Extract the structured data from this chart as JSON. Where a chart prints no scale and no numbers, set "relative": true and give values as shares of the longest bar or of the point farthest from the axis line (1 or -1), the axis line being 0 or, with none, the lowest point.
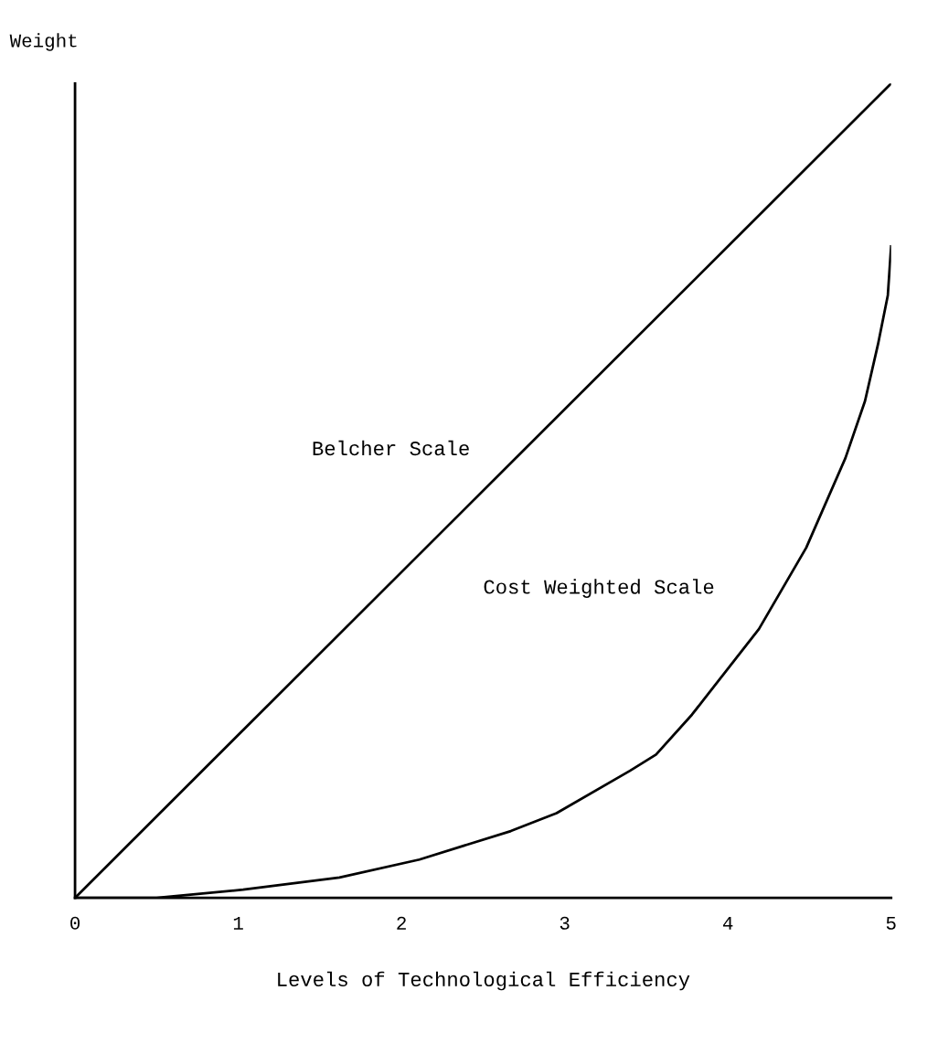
{
  "chart_data": {
    "type": "line",
    "xlabel": "Levels of Technological Efficiency",
    "ylabel": "Weight",
    "relative": true,
    "xlim": [
      0,
      5
    ],
    "xticks": [
      0,
      1,
      2,
      3,
      4,
      5
    ],
    "grid": false,
    "legend": false,
    "marker": "none",
    "line_style": "solid",
    "series": [
      {
        "name": "Belcher Scale",
        "color": "#000000",
        "x": [
          0,
          5
        ],
        "values": [
          0,
          1
        ]
      },
      {
        "name": "Cost Weighted Scale",
        "color": "#000000",
        "x": [
          0,
          0.5,
          1.03,
          1.62,
          2.11,
          2.67,
          2.95,
          3.4,
          3.56,
          3.78,
          4.19,
          4.48,
          4.72,
          4.84,
          4.92,
          4.98,
          5
        ],
        "values": [
          0,
          0,
          0.01,
          0.025,
          0.047,
          0.082,
          0.104,
          0.156,
          0.176,
          0.225,
          0.33,
          0.43,
          0.54,
          0.61,
          0.68,
          0.74,
          0.8
        ]
      }
    ]
  }
}
